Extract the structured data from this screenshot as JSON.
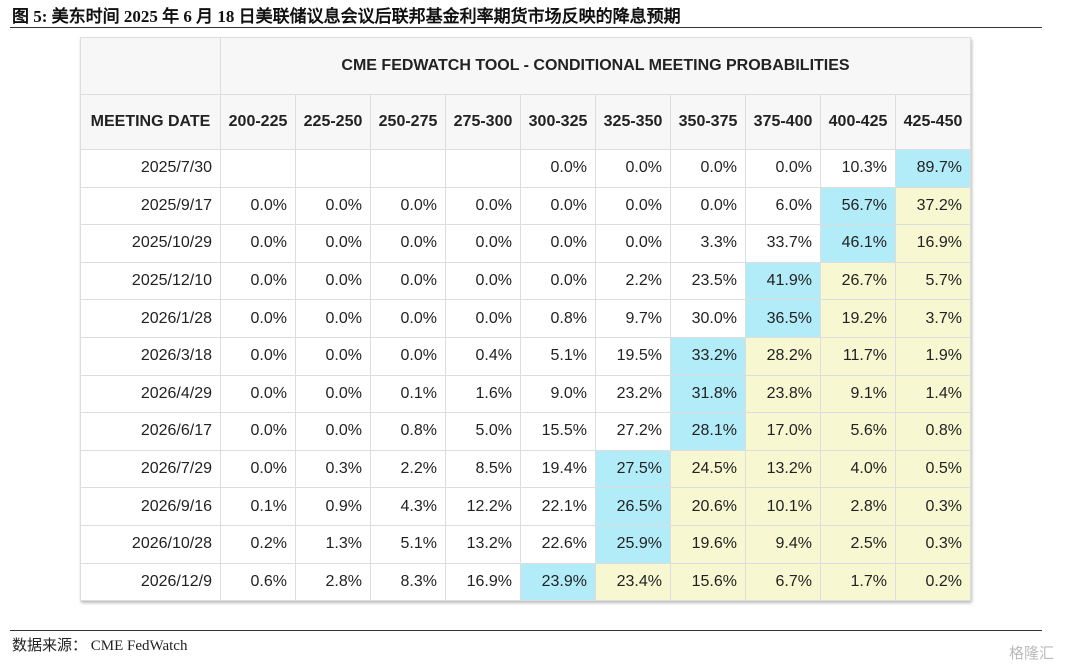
{
  "title": "图 5:  美东时间 2025 年 6 月 18 日美联储议息会议后联邦基金利率期货市场反映的降息预期",
  "table": {
    "caption": "CME FEDWATCH TOOL - CONDITIONAL MEETING PROBABILITIES",
    "header": [
      "MEETING DATE",
      "200-225",
      "225-250",
      "250-275",
      "275-300",
      "300-325",
      "325-350",
      "350-375",
      "375-400",
      "400-425",
      "425-450"
    ],
    "rows": [
      [
        "2025/7/30",
        null,
        null,
        null,
        null,
        "0.0%",
        "0.0%",
        "0.0%",
        "0.0%",
        "10.3%",
        "89.7%"
      ],
      [
        "2025/9/17",
        "0.0%",
        "0.0%",
        "0.0%",
        "0.0%",
        "0.0%",
        "0.0%",
        "0.0%",
        "6.0%",
        "56.7%",
        "37.2%"
      ],
      [
        "2025/10/29",
        "0.0%",
        "0.0%",
        "0.0%",
        "0.0%",
        "0.0%",
        "0.0%",
        "3.3%",
        "33.7%",
        "46.1%",
        "16.9%"
      ],
      [
        "2025/12/10",
        "0.0%",
        "0.0%",
        "0.0%",
        "0.0%",
        "0.0%",
        "2.2%",
        "23.5%",
        "41.9%",
        "26.7%",
        "5.7%"
      ],
      [
        "2026/1/28",
        "0.0%",
        "0.0%",
        "0.0%",
        "0.0%",
        "0.8%",
        "9.7%",
        "30.0%",
        "36.5%",
        "19.2%",
        "3.7%"
      ],
      [
        "2026/3/18",
        "0.0%",
        "0.0%",
        "0.0%",
        "0.4%",
        "5.1%",
        "19.5%",
        "33.2%",
        "28.2%",
        "11.7%",
        "1.9%"
      ],
      [
        "2026/4/29",
        "0.0%",
        "0.0%",
        "0.1%",
        "1.6%",
        "9.0%",
        "23.2%",
        "31.8%",
        "23.8%",
        "9.1%",
        "1.4%"
      ],
      [
        "2026/6/17",
        "0.0%",
        "0.0%",
        "0.8%",
        "5.0%",
        "15.5%",
        "27.2%",
        "28.1%",
        "17.0%",
        "5.6%",
        "0.8%"
      ],
      [
        "2026/7/29",
        "0.0%",
        "0.3%",
        "2.2%",
        "8.5%",
        "19.4%",
        "27.5%",
        "24.5%",
        "13.2%",
        "4.0%",
        "0.5%"
      ],
      [
        "2026/9/16",
        "0.1%",
        "0.9%",
        "4.3%",
        "12.2%",
        "22.1%",
        "26.5%",
        "20.6%",
        "10.1%",
        "2.8%",
        "0.3%"
      ],
      [
        "2026/10/28",
        "0.2%",
        "1.3%",
        "5.1%",
        "13.2%",
        "22.6%",
        "25.9%",
        "19.6%",
        "9.4%",
        "2.5%",
        "0.3%"
      ],
      [
        "2026/12/9",
        "0.6%",
        "2.8%",
        "8.3%",
        "16.9%",
        "23.9%",
        "23.4%",
        "15.6%",
        "6.7%",
        "1.7%",
        "0.2%"
      ]
    ]
  },
  "source": "数据来源：  CME FedWatch",
  "watermark": "格隆汇"
}
